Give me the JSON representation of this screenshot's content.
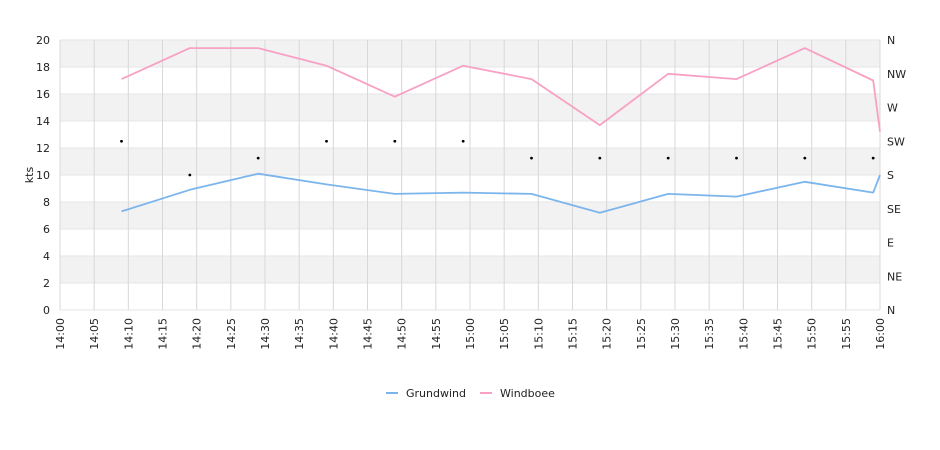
{
  "chart_data": {
    "type": "line",
    "ylabel": "kts",
    "ylim": [
      0,
      20
    ],
    "y_ticks": [
      "0",
      "2",
      "4",
      "6",
      "8",
      "10",
      "12",
      "14",
      "16",
      "18",
      "20"
    ],
    "x_ticks": [
      "14:00",
      "14:05",
      "14:10",
      "14:15",
      "14:20",
      "14:25",
      "14:30",
      "14:35",
      "14:40",
      "14:45",
      "14:50",
      "14:55",
      "15:00",
      "15:05",
      "15:10",
      "15:15",
      "15:20",
      "15:25",
      "15:30",
      "15:35",
      "15:40",
      "15:45",
      "15:50",
      "15:55",
      "16:00"
    ],
    "x_range": [
      "14:00",
      "16:00"
    ],
    "direction_ticks": [
      "N",
      "NE",
      "E",
      "SE",
      "S",
      "SW",
      "W",
      "NW",
      "N"
    ],
    "x": [
      "14:09",
      "14:19",
      "14:29",
      "14:39",
      "14:49",
      "14:59",
      "15:09",
      "15:19",
      "15:29",
      "15:39",
      "15:49",
      "15:59",
      "16:00"
    ],
    "series": [
      {
        "name": "Grundwind",
        "color": "#7cb5ec",
        "values": [
          7.3,
          8.9,
          10.1,
          9.3,
          8.6,
          8.7,
          8.6,
          7.2,
          8.6,
          8.4,
          9.5,
          8.7,
          10.0
        ]
      },
      {
        "name": "Windboee",
        "color": "#f7a1c4",
        "values": [
          17.1,
          19.4,
          19.4,
          18.1,
          15.8,
          18.1,
          17.1,
          13.7,
          17.5,
          17.1,
          19.4,
          17.0,
          13.2
        ]
      }
    ],
    "direction_points": {
      "x": [
        "14:09",
        "14:19",
        "14:29",
        "14:39",
        "14:49",
        "14:59",
        "15:09",
        "15:19",
        "15:29",
        "15:39",
        "15:49",
        "15:59"
      ],
      "values": [
        "SW",
        "S",
        "SSW",
        "SW",
        "SW",
        "SW",
        "SSW",
        "SSW",
        "SSW",
        "SSW",
        "SSW",
        "SSW"
      ]
    },
    "grid": true,
    "legend": "bottom-center"
  }
}
